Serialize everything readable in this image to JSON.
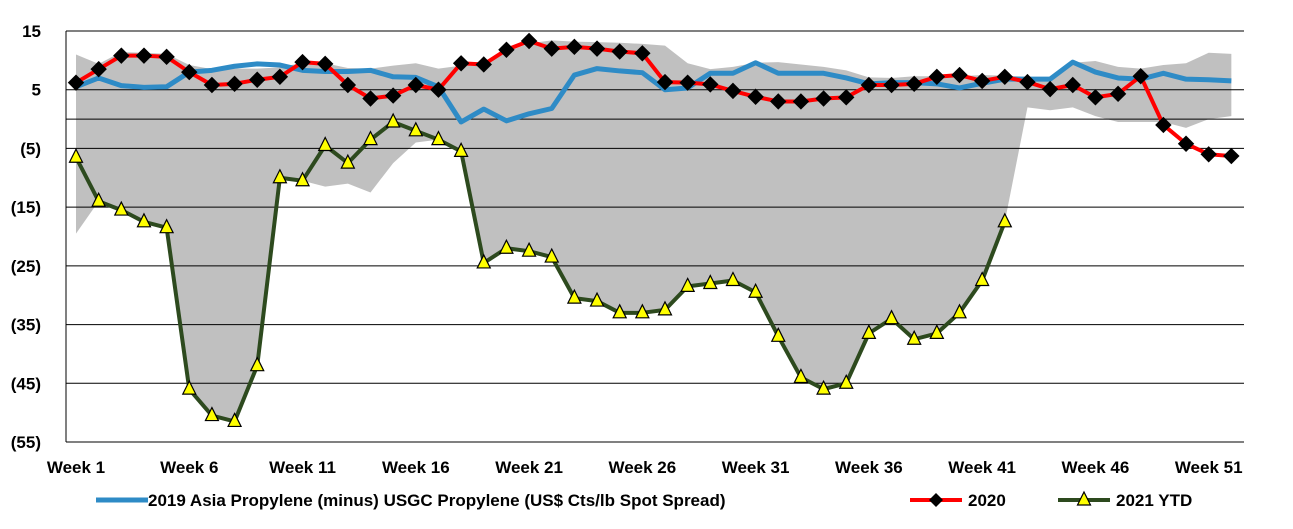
{
  "chart_data": {
    "type": "line",
    "title": "",
    "xlabel": "",
    "ylabel": "",
    "ylim": [
      -55,
      15
    ],
    "y_ticks": [
      15,
      5,
      -5,
      -15,
      -25,
      -35,
      -45,
      -55
    ],
    "y_tick_labels": [
      "15",
      "5",
      "(5)",
      "(15)",
      "(25)",
      "(35)",
      "(45)",
      "(55)"
    ],
    "x_tick_labels": [
      "Week 1",
      "Week 6",
      "Week 11",
      "Week 16",
      "Week 21",
      "Week 26",
      "Week 31",
      "Week 36",
      "Week 41",
      "Week 46",
      "Week 51"
    ],
    "x_tick_weeks": [
      1,
      6,
      11,
      16,
      21,
      26,
      31,
      36,
      41,
      46,
      51
    ],
    "x_range": [
      1,
      53
    ],
    "gridlines": "horizontal",
    "legend_position": "bottom",
    "band": {
      "name": "",
      "color": "#c0c0c0",
      "upper": [
        11.0,
        9.4,
        11.4,
        11.3,
        11.1,
        9.2,
        8.5,
        8.6,
        8.6,
        8.8,
        9.6,
        9.5,
        8.7,
        8.6,
        9.1,
        9.5,
        8.6,
        9.1,
        9.8,
        11.4,
        12.9,
        13.4,
        13.2,
        13.1,
        13.0,
        12.8,
        12.5,
        9.5,
        8.5,
        8.9,
        9.6,
        9.7,
        9.3,
        8.9,
        8.3,
        7.1,
        7.0,
        7.3,
        7.3,
        7.3,
        7.5,
        7.4,
        7.2,
        7.0,
        9.6,
        9.9,
        8.9,
        8.6,
        9.2,
        9.5,
        11.3,
        11.1
      ],
      "lower": [
        -19.5,
        -14.0,
        -15.5,
        -17.5,
        -18.5,
        -46.0,
        -50.5,
        -51.5,
        -42.0,
        -10.0,
        -10.5,
        -11.5,
        -11.0,
        -12.5,
        -7.5,
        -4.0,
        -3.5,
        -5.5,
        -24.5,
        -22.0,
        -22.5,
        -23.5,
        -30.5,
        -31.0,
        -33.0,
        -33.0,
        -32.5,
        -28.5,
        -28.0,
        -27.5,
        -29.5,
        -37.0,
        -44.0,
        -46.0,
        -45.0,
        -36.5,
        -34.0,
        -37.5,
        -36.5,
        -33.0,
        -27.5,
        -17.5,
        2.0,
        1.5,
        2.0,
        0.5,
        -0.5,
        -0.5,
        -0.5,
        -1.5,
        0.0,
        0.5
      ]
    },
    "series": [
      {
        "name": "2019 Asia Propylene (minus) USGC Propylene (US$ Cts/lb Spot Spread)",
        "color": "#2e8bc6",
        "marker": "none",
        "x": [
          1,
          2,
          3,
          4,
          5,
          6,
          7,
          8,
          9,
          10,
          11,
          12,
          13,
          14,
          15,
          16,
          17,
          18,
          19,
          20,
          21,
          22,
          23,
          24,
          25,
          26,
          27,
          28,
          29,
          30,
          31,
          32,
          33,
          34,
          35,
          36,
          37,
          38,
          39,
          40,
          41,
          42,
          43,
          44,
          45,
          46,
          47,
          48,
          49,
          50,
          51,
          52
        ],
        "values": [
          5.5,
          7.0,
          5.7,
          5.4,
          5.5,
          8.0,
          8.3,
          9.0,
          9.4,
          9.2,
          8.3,
          8.1,
          8.1,
          8.3,
          7.2,
          7.1,
          5.5,
          -0.5,
          1.7,
          -0.3,
          0.9,
          1.8,
          7.5,
          8.6,
          8.2,
          7.9,
          5.0,
          5.3,
          7.8,
          7.8,
          9.6,
          7.8,
          7.8,
          7.8,
          7.0,
          6.0,
          6.2,
          6.2,
          6.0,
          5.3,
          6.1,
          6.8,
          6.8,
          6.8,
          9.7,
          8.0,
          7.0,
          6.8,
          7.8,
          6.8,
          6.7,
          6.5
        ]
      },
      {
        "name": "2020",
        "color": "#ff0000",
        "marker": "diamond",
        "x": [
          1,
          2,
          3,
          4,
          5,
          6,
          7,
          8,
          9,
          10,
          11,
          12,
          13,
          14,
          15,
          16,
          17,
          18,
          19,
          20,
          21,
          22,
          23,
          24,
          25,
          26,
          27,
          28,
          29,
          30,
          31,
          32,
          33,
          34,
          35,
          36,
          37,
          38,
          39,
          40,
          41,
          42,
          43,
          44,
          45,
          46,
          47,
          48,
          49,
          50,
          51,
          52
        ],
        "values": [
          6.2,
          8.5,
          10.8,
          10.8,
          10.6,
          8.0,
          5.8,
          6.0,
          6.7,
          7.2,
          9.7,
          9.4,
          5.8,
          3.5,
          4.0,
          5.8,
          5.0,
          9.5,
          9.3,
          11.8,
          13.3,
          12.0,
          12.3,
          12.0,
          11.5,
          11.2,
          6.3,
          6.2,
          5.9,
          4.8,
          3.8,
          3.0,
          3.0,
          3.5,
          3.7,
          5.8,
          5.8,
          6.0,
          7.2,
          7.5,
          6.5,
          7.2,
          6.3,
          5.1,
          5.8,
          3.7,
          4.3,
          7.3,
          -1.0,
          -4.2,
          -6.0,
          -6.3
        ]
      },
      {
        "name": "2021 YTD",
        "color": "#2d4a1e",
        "marker": "triangle",
        "marker_fill": "#ffff00",
        "x": [
          1,
          2,
          3,
          4,
          5,
          6,
          7,
          8,
          9,
          10,
          11,
          12,
          13,
          14,
          15,
          16,
          17,
          18,
          19,
          20,
          21,
          22,
          23,
          24,
          25,
          26,
          27,
          28,
          29,
          30,
          31,
          32,
          33,
          34,
          35,
          36,
          37,
          38,
          39,
          40,
          41,
          42
        ],
        "values": [
          -6.5,
          -14.0,
          -15.5,
          -17.5,
          -18.5,
          -46.0,
          -50.5,
          -51.5,
          -42.0,
          -10.0,
          -10.5,
          -4.5,
          -7.5,
          -3.5,
          -0.5,
          -2.0,
          -3.5,
          -5.5,
          -24.5,
          -22.0,
          -22.5,
          -23.5,
          -30.5,
          -31.0,
          -33.0,
          -33.0,
          -32.5,
          -28.5,
          -28.0,
          -27.5,
          -29.5,
          -37.0,
          -44.0,
          -46.0,
          -45.0,
          -36.5,
          -34.0,
          -37.5,
          -36.5,
          -33.0,
          -27.5,
          -17.5
        ]
      }
    ]
  }
}
